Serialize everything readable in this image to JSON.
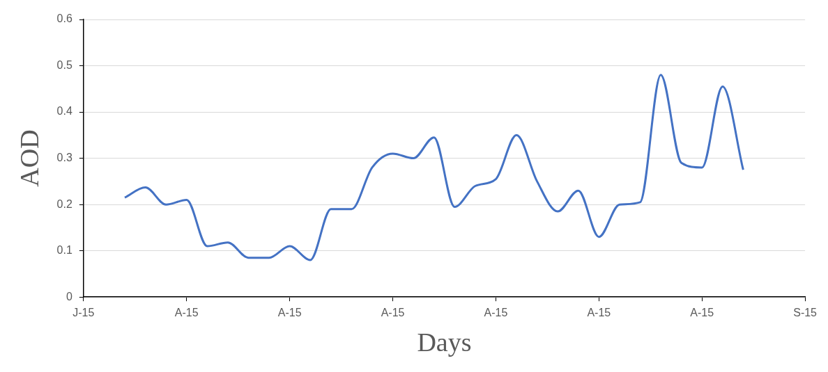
{
  "chart_data": {
    "type": "line",
    "xlabel": "Days",
    "ylabel": "AOD",
    "x": [
      "--08-01",
      "--08-02",
      "--08-03",
      "--08-04",
      "--08-05",
      "--08-06",
      "--08-07",
      "--08-08",
      "--08-09",
      "--08-10",
      "--08-11",
      "--08-12",
      "--08-13",
      "--08-14",
      "--08-15",
      "--08-16",
      "--08-17",
      "--08-18",
      "--08-19",
      "--08-20",
      "--08-21",
      "--08-22",
      "--08-23",
      "--08-24",
      "--08-25",
      "--08-26",
      "--08-27",
      "--08-28",
      "--08-29",
      "--08-30",
      "--08-31"
    ],
    "series": [
      {
        "color": "#4472c4",
        "values": [
          0.215,
          0.237,
          0.2,
          0.21,
          0.11,
          0.118,
          0.085,
          0.085,
          0.11,
          0.08,
          0.19,
          0.19,
          0.28,
          0.31,
          0.3,
          0.345,
          0.195,
          0.24,
          0.255,
          0.35,
          0.25,
          0.185,
          0.23,
          0.13,
          0.2,
          0.205,
          0.48,
          0.29,
          0.28,
          0.455,
          0.275
        ]
      }
    ],
    "xlim": [
      "--07-30",
      "--09-03"
    ],
    "xticks": [
      {
        "value": "--07-30",
        "label": "J-15"
      },
      {
        "value": "--08-04",
        "label": "A-15"
      },
      {
        "value": "--08-09",
        "label": "A-15"
      },
      {
        "value": "--08-14",
        "label": "A-15"
      },
      {
        "value": "--08-19",
        "label": "A-15"
      },
      {
        "value": "--08-24",
        "label": "A-15"
      },
      {
        "value": "--08-29",
        "label": "A-15"
      },
      {
        "value": "--09-03",
        "label": "S-15"
      }
    ],
    "ylim": [
      0,
      0.6
    ],
    "yticks": [
      0,
      0.1,
      0.2,
      0.3,
      0.4,
      0.5,
      0.6
    ],
    "grid": "y",
    "legend": false,
    "marker": "none",
    "line_style": "solid"
  }
}
